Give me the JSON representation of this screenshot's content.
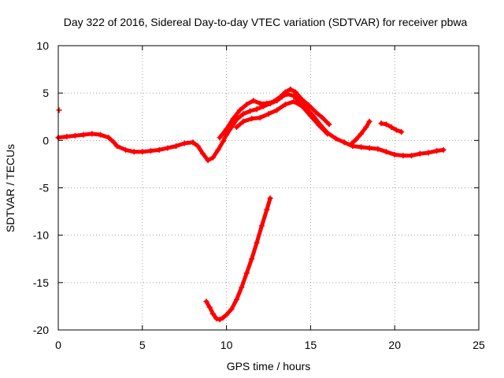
{
  "chart_data": {
    "type": "scatter",
    "title": "Day 322 of 2016, Sidereal Day-to-day VTEC variation (SDTVAR) for receiver pbwa",
    "xlabel": "GPS time / hours",
    "ylabel": "SDTVAR / TECUs",
    "xlim": [
      0,
      25
    ],
    "ylim": [
      -20,
      10
    ],
    "xticks": [
      0,
      5,
      10,
      15,
      20,
      25
    ],
    "yticks": [
      -20,
      -15,
      -10,
      -5,
      0,
      5,
      10
    ],
    "grid": true,
    "series_color": "#ff0000",
    "series": [
      {
        "name": "sdtvar_main",
        "x": [
          0,
          0.5,
          1,
          1.5,
          2,
          2.5,
          3,
          3.3,
          3.5,
          4,
          4.5,
          5,
          5.5,
          6,
          6.5,
          7,
          7.5,
          8,
          8.3,
          8.6,
          8.9,
          9.2,
          9.5,
          9.8,
          10,
          10.3,
          10.6,
          11,
          11.4,
          11.8,
          12.2,
          12.6,
          13,
          13.3,
          13.6,
          14,
          14.4,
          14.8,
          15.2,
          15.6,
          16,
          16.5,
          17,
          17.5,
          18,
          18.5,
          19,
          19.5,
          20,
          20.5,
          21,
          21.5,
          22,
          22.5,
          22.9
        ],
        "y": [
          0.3,
          0.4,
          0.5,
          0.6,
          0.7,
          0.6,
          0.3,
          -0.2,
          -0.6,
          -1.0,
          -1.2,
          -1.2,
          -1.1,
          -1.0,
          -0.8,
          -0.6,
          -0.3,
          -0.2,
          -0.6,
          -1.4,
          -2.1,
          -1.8,
          -1.0,
          -0.1,
          0.6,
          1.4,
          2.2,
          2.8,
          3.1,
          3.3,
          3.6,
          3.9,
          4.2,
          4.6,
          4.9,
          4.7,
          4.0,
          3.3,
          2.5,
          1.6,
          0.8,
          0.2,
          -0.2,
          -0.6,
          -0.7,
          -0.8,
          -0.9,
          -1.2,
          -1.5,
          -1.6,
          -1.6,
          -1.4,
          -1.3,
          -1.1,
          -1.0
        ]
      },
      {
        "name": "sdtvar_upper_branch",
        "x": [
          9.6,
          10,
          10.4,
          10.8,
          11.2,
          11.6,
          12,
          12.4,
          12.8,
          13.2,
          13.5,
          13.8,
          14.1,
          14.5,
          14.9,
          15.3,
          15.7,
          16.1
        ],
        "y": [
          0.3,
          1.2,
          2.3,
          3.2,
          3.8,
          4.2,
          3.9,
          3.9,
          4.1,
          4.6,
          5.1,
          5.4,
          5.1,
          4.3,
          3.7,
          3.0,
          2.4,
          1.7
        ]
      },
      {
        "name": "sdtvar_lower_branch",
        "x": [
          10.6,
          11,
          11.5,
          12,
          12.5,
          13,
          13.5,
          14,
          14.5,
          15,
          15.5,
          16
        ],
        "y": [
          1.4,
          2.0,
          2.3,
          2.4,
          2.8,
          3.2,
          3.8,
          4.1,
          3.6,
          2.6,
          1.6,
          0.7
        ]
      },
      {
        "name": "sdtvar_low_arc",
        "x": [
          8.8,
          9.0,
          9.2,
          9.4,
          9.6,
          9.8,
          10.0,
          10.3,
          10.6,
          10.9,
          11.2,
          11.5,
          11.8,
          12.1,
          12.4,
          12.6
        ],
        "y": [
          -17.0,
          -17.6,
          -18.3,
          -18.8,
          -18.9,
          -18.7,
          -18.4,
          -17.8,
          -16.8,
          -15.5,
          -14.0,
          -12.5,
          -10.8,
          -9.0,
          -7.3,
          -6.1
        ]
      },
      {
        "name": "sdtvar_spike_18",
        "x": [
          17.4,
          17.7,
          18.0,
          18.3,
          18.5
        ],
        "y": [
          -0.4,
          0.1,
          0.7,
          1.4,
          2.0
        ]
      },
      {
        "name": "sdtvar_spike_19",
        "x": [
          19.2,
          19.5,
          19.8,
          20.1,
          20.4
        ],
        "y": [
          1.8,
          1.7,
          1.4,
          1.1,
          0.9
        ]
      },
      {
        "name": "sdtvar_point_start",
        "x": [
          0.05
        ],
        "y": [
          3.2
        ]
      }
    ]
  }
}
